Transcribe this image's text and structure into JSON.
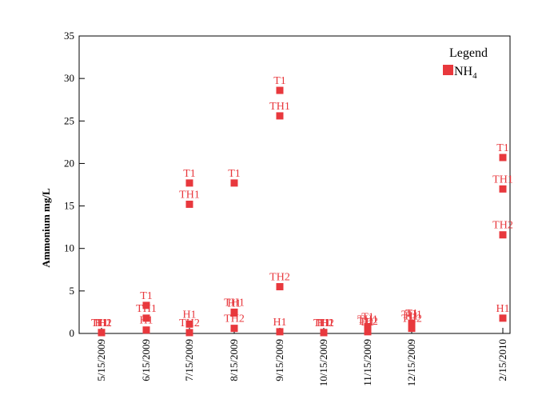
{
  "chart_data": {
    "type": "scatter",
    "ylabel": "Ammonium  mg/L",
    "xlabel": "",
    "ylim": [
      0,
      35
    ],
    "yticks": [
      0,
      5,
      10,
      15,
      20,
      25,
      30,
      35
    ],
    "categories": [
      "5/15/2009",
      "6/15/2009",
      "7/15/2009",
      "8/15/2009",
      "9/15/2009",
      "10/15/2009",
      "11/15/2009",
      "12/15/2009",
      "2/15/2010"
    ],
    "color": "#e8383d",
    "legend": {
      "title": "Legend",
      "entry": "NH",
      "entry_sub": "4",
      "position": "top-right"
    },
    "series": [
      {
        "x": "5/15/2009",
        "points": [
          {
            "label": "T1",
            "y": 0.1
          },
          {
            "label": "TH1",
            "y": 0.1
          },
          {
            "label": "TH2",
            "y": 0.1
          },
          {
            "label": "H1",
            "y": 0.1
          }
        ]
      },
      {
        "x": "6/15/2009",
        "points": [
          {
            "label": "T1",
            "y": 3.3
          },
          {
            "label": "TH1",
            "y": 1.8
          },
          {
            "label": "H1",
            "y": 0.4
          }
        ]
      },
      {
        "x": "7/15/2009",
        "points": [
          {
            "label": "T1",
            "y": 17.7
          },
          {
            "label": "TH1",
            "y": 15.2
          },
          {
            "label": "H1",
            "y": 1.1
          },
          {
            "label": "TH2",
            "y": 0.1
          }
        ]
      },
      {
        "x": "8/15/2009",
        "points": [
          {
            "label": "T1",
            "y": 17.7
          },
          {
            "label": "TH1",
            "y": 2.5
          },
          {
            "label": "H1",
            "y": 2.4
          },
          {
            "label": "TH2",
            "y": 0.6
          }
        ]
      },
      {
        "x": "9/15/2009",
        "points": [
          {
            "label": "T1",
            "y": 28.6
          },
          {
            "label": "TH1",
            "y": 25.6
          },
          {
            "label": "TH2",
            "y": 5.5
          },
          {
            "label": "H1",
            "y": 0.2
          }
        ]
      },
      {
        "x": "10/15/2009",
        "points": [
          {
            "label": "T1",
            "y": 0.1
          },
          {
            "label": "TH1",
            "y": 0.1
          },
          {
            "label": "TH2",
            "y": 0.1
          },
          {
            "label": "H1",
            "y": 0.1
          }
        ]
      },
      {
        "x": "11/15/2009",
        "points": [
          {
            "label": "T1",
            "y": 0.8
          },
          {
            "label": "TH1",
            "y": 0.5
          },
          {
            "label": "TH2",
            "y": 0.3
          },
          {
            "label": "H1",
            "y": 0.2
          }
        ]
      },
      {
        "x": "12/15/2009",
        "points": [
          {
            "label": "T1",
            "y": 1.2
          },
          {
            "label": "TH1",
            "y": 1.1
          },
          {
            "label": "H1",
            "y": 0.9
          },
          {
            "label": "TH2",
            "y": 0.6
          }
        ]
      },
      {
        "x": "2/15/2010",
        "points": [
          {
            "label": "T1",
            "y": 20.7
          },
          {
            "label": "TH1",
            "y": 17.0
          },
          {
            "label": "TH2",
            "y": 11.6
          },
          {
            "label": "H1",
            "y": 1.8
          }
        ]
      }
    ]
  }
}
